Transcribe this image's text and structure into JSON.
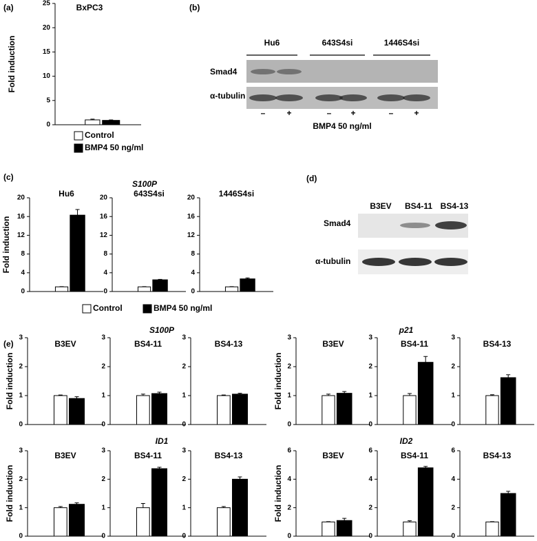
{
  "chart_data": [
    {
      "type": "bar",
      "panel": "(a)",
      "title": "BxPC3",
      "ylabel": "Fold induction",
      "categories": [
        null
      ],
      "series": [
        {
          "name": "Control",
          "color": "#ffffff",
          "values": [
            1.0
          ],
          "errors": [
            0.15
          ]
        },
        {
          "name": "BMP4 50 ng/ml",
          "color": "#000000",
          "values": [
            0.9
          ],
          "errors": [
            0.1
          ]
        }
      ],
      "ylim": [
        0,
        25
      ],
      "yticks": [
        0,
        5,
        10,
        15,
        20,
        25
      ],
      "legend": "bottom"
    },
    {
      "type": "bar",
      "panel": "(c)",
      "title": "S100P",
      "ylabel": "Fold induction",
      "categories": [
        "Hu6",
        "643S4si",
        "1446S4si"
      ],
      "series": [
        {
          "name": "Control",
          "color": "#ffffff",
          "values": [
            1.0,
            1.0,
            1.0
          ],
          "errors": [
            0.05,
            0.05,
            0.05
          ]
        },
        {
          "name": "BMP4 50 ng/ml",
          "color": "#000000",
          "values": [
            16.3,
            2.5,
            2.7
          ],
          "errors": [
            1.2,
            0.1,
            0.2
          ]
        }
      ],
      "ylim": [
        0,
        20
      ],
      "yticks": [
        0,
        4,
        8,
        12,
        16,
        20
      ],
      "legend": "bottom"
    },
    {
      "type": "bar",
      "panel": "(e)",
      "title": "S100P",
      "ylabel": "Fold induction",
      "categories": [
        "B3EV",
        "BS4-11",
        "BS4-13"
      ],
      "series": [
        {
          "color": "#ffffff",
          "values": [
            1.0,
            1.0,
            1.0
          ],
          "errors": [
            0.02,
            0.05,
            0.02
          ]
        },
        {
          "color": "#000000",
          "values": [
            0.9,
            1.07,
            1.05
          ],
          "errors": [
            0.06,
            0.05,
            0.03
          ]
        }
      ],
      "ylim": [
        0,
        3
      ],
      "yticks": [
        0,
        1,
        2,
        3
      ]
    },
    {
      "type": "bar",
      "title": "p21",
      "ylabel": "Fold induction",
      "categories": [
        "B3EV",
        "BS4-11",
        "BS4-13"
      ],
      "series": [
        {
          "color": "#ffffff",
          "values": [
            1.0,
            1.0,
            1.0
          ],
          "errors": [
            0.05,
            0.07,
            0.03
          ]
        },
        {
          "color": "#000000",
          "values": [
            1.08,
            2.15,
            1.62
          ],
          "errors": [
            0.06,
            0.2,
            0.1
          ]
        }
      ],
      "ylim": [
        0,
        3
      ],
      "yticks": [
        0,
        1,
        2,
        3
      ]
    },
    {
      "type": "bar",
      "title": "ID1",
      "ylabel": "Fold induction",
      "categories": [
        "B3EV",
        "BS4-11",
        "BS4-13"
      ],
      "series": [
        {
          "color": "#ffffff",
          "values": [
            1.0,
            1.0,
            1.0
          ],
          "errors": [
            0.04,
            0.15,
            0.04
          ]
        },
        {
          "color": "#000000",
          "values": [
            1.12,
            2.37,
            2.0
          ],
          "errors": [
            0.05,
            0.05,
            0.08
          ]
        }
      ],
      "ylim": [
        0,
        3
      ],
      "yticks": [
        0,
        1,
        2,
        3
      ]
    },
    {
      "type": "bar",
      "title": "ID2",
      "ylabel": "Fold induction",
      "categories": [
        "B3EV",
        "BS4-11",
        "BS4-13"
      ],
      "series": [
        {
          "color": "#ffffff",
          "values": [
            1.0,
            1.0,
            1.0
          ],
          "errors": [
            0.02,
            0.08,
            0.02
          ]
        },
        {
          "color": "#000000",
          "values": [
            1.1,
            4.8,
            3.0
          ],
          "errors": [
            0.15,
            0.1,
            0.15
          ]
        }
      ],
      "ylim": [
        0,
        6
      ],
      "yticks": [
        0,
        2,
        4,
        6
      ]
    }
  ],
  "blots": [
    {
      "panel": "(b)",
      "groups": [
        "Hu6",
        "643S4si",
        "1446S4si"
      ],
      "rows": [
        "Smad4",
        "α-tubulin"
      ],
      "signs": [
        "–",
        "+",
        "–",
        "+",
        "–",
        "+"
      ],
      "treatment": "BMP4 50 ng/ml"
    },
    {
      "panel": "(d)",
      "groups": [
        "B3EV",
        "BS4-11",
        "BS4-13"
      ],
      "rows": [
        "Smad4",
        "α-tubulin"
      ]
    }
  ]
}
